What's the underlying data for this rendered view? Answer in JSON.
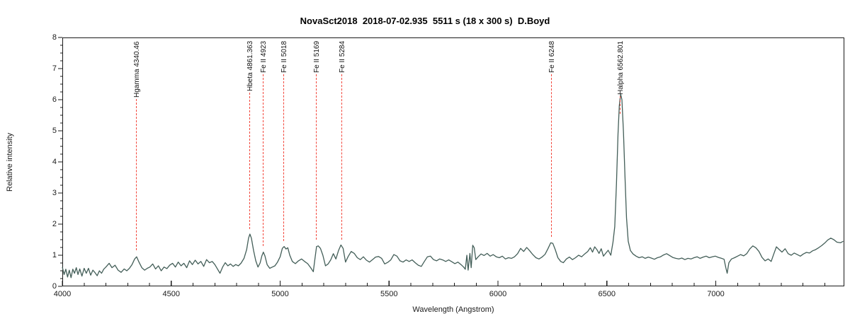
{
  "title": "NovaSct2018  2018-07-02.935  5511 s (18 x 300 s)  D.Boyd",
  "chart_data": {
    "type": "line",
    "title": "NovaSct2018  2018-07-02.935  5511 s (18 x 300 s)  D.Boyd",
    "xlabel": "Wavelength (Angstrom)",
    "ylabel": "Relative intensity",
    "xlim": [
      4000,
      7590
    ],
    "ylim": [
      0,
      8
    ],
    "x_major_ticks": [
      4000,
      4500,
      5000,
      5500,
      6000,
      6500,
      7000
    ],
    "x_minor_step": 100,
    "y_major_ticks": [
      0,
      1,
      2,
      3,
      4,
      5,
      6,
      7,
      8
    ],
    "y_minor_step": 0.25,
    "grid": false,
    "legend": "none",
    "axis_color": "#1a1a1a",
    "annotation_color": "#f3453a",
    "annotations": [
      {
        "label": "Hgamma 4340.46",
        "wavelength": 4340.46,
        "line_to": 1.15
      },
      {
        "label": "Hbeta 4861.363",
        "wavelength": 4861.363,
        "line_to": 1.85
      },
      {
        "label": "Fe II 4923",
        "wavelength": 4923,
        "line_to": 1.3
      },
      {
        "label": "Fe II 5018",
        "wavelength": 5018,
        "line_to": 1.45
      },
      {
        "label": "Fe II 5169",
        "wavelength": 5169,
        "line_to": 1.5
      },
      {
        "label": "Fe II 5284",
        "wavelength": 5284,
        "line_to": 1.5
      },
      {
        "label": "Fe II 6248",
        "wavelength": 6248,
        "line_to": 1.6
      },
      {
        "label": "Halpha 6562.801",
        "wavelength": 6562.801,
        "line_to": 5.55
      }
    ],
    "series": [
      {
        "name": "spectrum",
        "color": "#435e58",
        "points": [
          [
            4000,
            0.62
          ],
          [
            4008,
            0.38
          ],
          [
            4016,
            0.55
          ],
          [
            4024,
            0.3
          ],
          [
            4032,
            0.52
          ],
          [
            4040,
            0.28
          ],
          [
            4048,
            0.55
          ],
          [
            4056,
            0.42
          ],
          [
            4064,
            0.6
          ],
          [
            4072,
            0.38
          ],
          [
            4080,
            0.56
          ],
          [
            4090,
            0.33
          ],
          [
            4100,
            0.58
          ],
          [
            4110,
            0.42
          ],
          [
            4120,
            0.58
          ],
          [
            4130,
            0.36
          ],
          [
            4140,
            0.52
          ],
          [
            4150,
            0.44
          ],
          [
            4160,
            0.34
          ],
          [
            4170,
            0.5
          ],
          [
            4180,
            0.42
          ],
          [
            4190,
            0.55
          ],
          [
            4200,
            0.62
          ],
          [
            4215,
            0.74
          ],
          [
            4228,
            0.6
          ],
          [
            4242,
            0.68
          ],
          [
            4256,
            0.52
          ],
          [
            4270,
            0.45
          ],
          [
            4284,
            0.56
          ],
          [
            4296,
            0.5
          ],
          [
            4308,
            0.58
          ],
          [
            4320,
            0.7
          ],
          [
            4332,
            0.88
          ],
          [
            4341,
            0.95
          ],
          [
            4352,
            0.78
          ],
          [
            4365,
            0.6
          ],
          [
            4378,
            0.52
          ],
          [
            4390,
            0.58
          ],
          [
            4402,
            0.62
          ],
          [
            4415,
            0.72
          ],
          [
            4428,
            0.56
          ],
          [
            4441,
            0.66
          ],
          [
            4454,
            0.5
          ],
          [
            4467,
            0.62
          ],
          [
            4480,
            0.57
          ],
          [
            4493,
            0.68
          ],
          [
            4506,
            0.74
          ],
          [
            4519,
            0.62
          ],
          [
            4532,
            0.78
          ],
          [
            4545,
            0.66
          ],
          [
            4558,
            0.74
          ],
          [
            4571,
            0.6
          ],
          [
            4584,
            0.82
          ],
          [
            4597,
            0.7
          ],
          [
            4610,
            0.84
          ],
          [
            4623,
            0.72
          ],
          [
            4636,
            0.8
          ],
          [
            4649,
            0.64
          ],
          [
            4662,
            0.86
          ],
          [
            4675,
            0.76
          ],
          [
            4688,
            0.8
          ],
          [
            4700,
            0.7
          ],
          [
            4712,
            0.56
          ],
          [
            4724,
            0.42
          ],
          [
            4736,
            0.62
          ],
          [
            4748,
            0.76
          ],
          [
            4760,
            0.66
          ],
          [
            4772,
            0.72
          ],
          [
            4784,
            0.64
          ],
          [
            4796,
            0.7
          ],
          [
            4808,
            0.66
          ],
          [
            4820,
            0.74
          ],
          [
            4834,
            0.9
          ],
          [
            4846,
            1.18
          ],
          [
            4855,
            1.55
          ],
          [
            4861,
            1.68
          ],
          [
            4868,
            1.55
          ],
          [
            4878,
            1.15
          ],
          [
            4888,
            0.82
          ],
          [
            4898,
            0.62
          ],
          [
            4908,
            0.75
          ],
          [
            4916,
            0.98
          ],
          [
            4923,
            1.1
          ],
          [
            4930,
            0.98
          ],
          [
            4940,
            0.7
          ],
          [
            4952,
            0.58
          ],
          [
            4964,
            0.62
          ],
          [
            4976,
            0.66
          ],
          [
            4988,
            0.78
          ],
          [
            5000,
            0.95
          ],
          [
            5010,
            1.22
          ],
          [
            5018,
            1.28
          ],
          [
            5027,
            1.2
          ],
          [
            5035,
            1.24
          ],
          [
            5044,
            1.0
          ],
          [
            5056,
            0.8
          ],
          [
            5070,
            0.73
          ],
          [
            5084,
            0.82
          ],
          [
            5098,
            0.88
          ],
          [
            5112,
            0.8
          ],
          [
            5126,
            0.73
          ],
          [
            5140,
            0.6
          ],
          [
            5152,
            0.47
          ],
          [
            5160,
            0.9
          ],
          [
            5167,
            1.28
          ],
          [
            5175,
            1.3
          ],
          [
            5185,
            1.22
          ],
          [
            5196,
            1.0
          ],
          [
            5208,
            0.66
          ],
          [
            5220,
            0.72
          ],
          [
            5232,
            0.85
          ],
          [
            5244,
            1.05
          ],
          [
            5256,
            0.88
          ],
          [
            5268,
            1.15
          ],
          [
            5279,
            1.33
          ],
          [
            5289,
            1.22
          ],
          [
            5300,
            0.78
          ],
          [
            5312,
            0.96
          ],
          [
            5326,
            1.12
          ],
          [
            5340,
            1.06
          ],
          [
            5354,
            0.92
          ],
          [
            5368,
            0.86
          ],
          [
            5382,
            0.95
          ],
          [
            5396,
            0.84
          ],
          [
            5410,
            0.78
          ],
          [
            5424,
            0.86
          ],
          [
            5438,
            0.94
          ],
          [
            5452,
            0.96
          ],
          [
            5466,
            0.9
          ],
          [
            5480,
            0.72
          ],
          [
            5494,
            0.77
          ],
          [
            5508,
            0.85
          ],
          [
            5522,
            1.02
          ],
          [
            5536,
            0.97
          ],
          [
            5550,
            0.82
          ],
          [
            5564,
            0.78
          ],
          [
            5578,
            0.85
          ],
          [
            5592,
            0.8
          ],
          [
            5606,
            0.85
          ],
          [
            5620,
            0.76
          ],
          [
            5634,
            0.68
          ],
          [
            5648,
            0.64
          ],
          [
            5662,
            0.8
          ],
          [
            5676,
            0.95
          ],
          [
            5690,
            0.97
          ],
          [
            5704,
            0.86
          ],
          [
            5718,
            0.82
          ],
          [
            5732,
            0.88
          ],
          [
            5746,
            0.85
          ],
          [
            5760,
            0.8
          ],
          [
            5774,
            0.85
          ],
          [
            5788,
            0.79
          ],
          [
            5802,
            0.73
          ],
          [
            5816,
            0.78
          ],
          [
            5830,
            0.7
          ],
          [
            5842,
            0.62
          ],
          [
            5850,
            0.55
          ],
          [
            5857,
            1.0
          ],
          [
            5863,
            0.52
          ],
          [
            5871,
            1.06
          ],
          [
            5877,
            0.6
          ],
          [
            5884,
            1.32
          ],
          [
            5891,
            1.24
          ],
          [
            5898,
            0.86
          ],
          [
            5908,
            0.94
          ],
          [
            5922,
            1.04
          ],
          [
            5936,
            0.99
          ],
          [
            5950,
            1.06
          ],
          [
            5964,
            0.97
          ],
          [
            5978,
            1.02
          ],
          [
            5992,
            0.95
          ],
          [
            6006,
            0.92
          ],
          [
            6020,
            0.97
          ],
          [
            6034,
            0.88
          ],
          [
            6048,
            0.92
          ],
          [
            6062,
            0.9
          ],
          [
            6076,
            0.95
          ],
          [
            6090,
            1.05
          ],
          [
            6104,
            1.22
          ],
          [
            6118,
            1.12
          ],
          [
            6132,
            1.25
          ],
          [
            6146,
            1.14
          ],
          [
            6160,
            1.02
          ],
          [
            6174,
            0.92
          ],
          [
            6188,
            0.88
          ],
          [
            6202,
            0.94
          ],
          [
            6216,
            1.03
          ],
          [
            6230,
            1.22
          ],
          [
            6242,
            1.4
          ],
          [
            6252,
            1.38
          ],
          [
            6263,
            1.18
          ],
          [
            6275,
            0.92
          ],
          [
            6288,
            0.8
          ],
          [
            6300,
            0.76
          ],
          [
            6314,
            0.88
          ],
          [
            6328,
            0.94
          ],
          [
            6342,
            0.86
          ],
          [
            6356,
            0.92
          ],
          [
            6370,
            1.0
          ],
          [
            6384,
            0.95
          ],
          [
            6398,
            1.04
          ],
          [
            6412,
            1.12
          ],
          [
            6424,
            1.24
          ],
          [
            6434,
            1.1
          ],
          [
            6444,
            1.27
          ],
          [
            6454,
            1.18
          ],
          [
            6464,
            1.06
          ],
          [
            6474,
            1.21
          ],
          [
            6484,
            0.97
          ],
          [
            6494,
            1.06
          ],
          [
            6506,
            1.16
          ],
          [
            6518,
            1.0
          ],
          [
            6528,
            1.42
          ],
          [
            6536,
            1.92
          ],
          [
            6544,
            3.3
          ],
          [
            6551,
            4.9
          ],
          [
            6557,
            5.8
          ],
          [
            6563,
            6.18
          ],
          [
            6569,
            6.0
          ],
          [
            6576,
            4.95
          ],
          [
            6583,
            3.55
          ],
          [
            6590,
            2.2
          ],
          [
            6598,
            1.45
          ],
          [
            6608,
            1.15
          ],
          [
            6620,
            1.04
          ],
          [
            6634,
            0.97
          ],
          [
            6648,
            0.92
          ],
          [
            6662,
            0.95
          ],
          [
            6676,
            0.9
          ],
          [
            6690,
            0.94
          ],
          [
            6704,
            0.91
          ],
          [
            6718,
            0.87
          ],
          [
            6732,
            0.92
          ],
          [
            6746,
            0.95
          ],
          [
            6760,
            1.01
          ],
          [
            6774,
            1.05
          ],
          [
            6788,
            0.99
          ],
          [
            6802,
            0.93
          ],
          [
            6816,
            0.9
          ],
          [
            6830,
            0.88
          ],
          [
            6844,
            0.91
          ],
          [
            6858,
            0.86
          ],
          [
            6872,
            0.9
          ],
          [
            6886,
            0.88
          ],
          [
            6900,
            0.92
          ],
          [
            6914,
            0.95
          ],
          [
            6928,
            0.9
          ],
          [
            6942,
            0.94
          ],
          [
            6956,
            0.97
          ],
          [
            6970,
            0.92
          ],
          [
            6984,
            0.95
          ],
          [
            6998,
            0.97
          ],
          [
            7012,
            0.93
          ],
          [
            7026,
            0.9
          ],
          [
            7038,
            0.87
          ],
          [
            7046,
            0.6
          ],
          [
            7052,
            0.42
          ],
          [
            7060,
            0.76
          ],
          [
            7072,
            0.88
          ],
          [
            7086,
            0.92
          ],
          [
            7100,
            0.97
          ],
          [
            7114,
            1.02
          ],
          [
            7128,
            0.98
          ],
          [
            7142,
            1.05
          ],
          [
            7156,
            1.2
          ],
          [
            7170,
            1.3
          ],
          [
            7184,
            1.24
          ],
          [
            7198,
            1.12
          ],
          [
            7212,
            0.93
          ],
          [
            7226,
            0.82
          ],
          [
            7240,
            0.88
          ],
          [
            7254,
            0.8
          ],
          [
            7266,
            1.04
          ],
          [
            7278,
            1.27
          ],
          [
            7290,
            1.19
          ],
          [
            7304,
            1.1
          ],
          [
            7318,
            1.21
          ],
          [
            7332,
            1.05
          ],
          [
            7346,
            1.0
          ],
          [
            7360,
            1.07
          ],
          [
            7374,
            1.02
          ],
          [
            7388,
            0.97
          ],
          [
            7402,
            1.04
          ],
          [
            7416,
            1.09
          ],
          [
            7430,
            1.07
          ],
          [
            7444,
            1.14
          ],
          [
            7458,
            1.18
          ],
          [
            7472,
            1.24
          ],
          [
            7486,
            1.31
          ],
          [
            7500,
            1.39
          ],
          [
            7514,
            1.49
          ],
          [
            7528,
            1.55
          ],
          [
            7542,
            1.5
          ],
          [
            7556,
            1.42
          ],
          [
            7572,
            1.4
          ],
          [
            7585,
            1.45
          ]
        ]
      }
    ]
  }
}
